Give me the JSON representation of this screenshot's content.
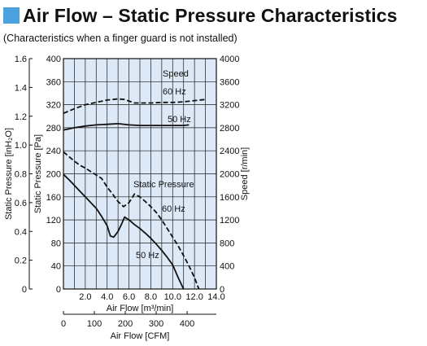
{
  "header": {
    "title": "Air Flow – Static Pressure Characteristics",
    "subtitle": "(Characteristics when a finger guard is not installed)"
  },
  "colors": {
    "title_marker": "#4aa3df",
    "plot_background": "#dde9f7",
    "grid": "#1a1a1a",
    "curves": "#111111"
  },
  "chart_data": {
    "type": "line",
    "grid": true,
    "plot_background": "#dde9f7",
    "axes": {
      "x_airflow_m3": {
        "label": "Air Flow [m³/min]",
        "range": [
          0,
          14
        ],
        "ticks": [
          2.0,
          4.0,
          6.0,
          8.0,
          10.0,
          12.0,
          14.0
        ],
        "tick_labels": [
          "2.0",
          "4.0",
          "6.0",
          "8.0",
          "10.0",
          "12.0",
          "14.0"
        ]
      },
      "x_airflow_cfm": {
        "label": "Air Flow [CFM]",
        "range": [
          0,
          494.4
        ],
        "ticks": [
          0,
          100,
          200,
          300,
          400
        ],
        "tick_labels": [
          "0",
          "100",
          "200",
          "300",
          "400"
        ]
      },
      "y_pressure_pa": {
        "label": "Static Pressure [Pa]",
        "range": [
          0,
          400
        ],
        "ticks": [
          0,
          40,
          80,
          120,
          160,
          200,
          240,
          280,
          320,
          360,
          400
        ],
        "tick_labels": [
          "0",
          "40",
          "80",
          "120",
          "160",
          "200",
          "240",
          "280",
          "320",
          "360",
          "400"
        ]
      },
      "y_pressure_inh2o": {
        "label": "Static Pressure [inH₂O]",
        "range": [
          0,
          1.6
        ],
        "ticks": [
          0,
          0.2,
          0.4,
          0.6,
          0.8,
          1.0,
          1.2,
          1.4,
          1.6
        ],
        "tick_labels": [
          "0",
          "0.2",
          "0.4",
          "0.6",
          "0.8",
          "1.0",
          "1.2",
          "1.4",
          "1.6"
        ]
      },
      "y_speed_rpm": {
        "label": "Speed [r/min]",
        "range": [
          0,
          4000
        ],
        "ticks": [
          0,
          400,
          800,
          1200,
          1600,
          2000,
          2400,
          2800,
          3200,
          3600,
          4000
        ],
        "tick_labels": [
          "0",
          "400",
          "800",
          "1200",
          "1600",
          "2000",
          "2400",
          "2800",
          "3200",
          "3600",
          "4000"
        ]
      }
    },
    "annotations": {
      "speed": "Speed",
      "speed_60hz": "60 Hz",
      "speed_50hz": "50 Hz",
      "static_pressure": "Static Pressure",
      "pressure_60hz": "60 Hz",
      "pressure_50hz": "50 Hz"
    },
    "series": [
      {
        "name": "60 Hz",
        "group": "Speed",
        "style": "dashed",
        "unit": "r/min",
        "x": [
          0,
          1,
          2,
          3,
          4,
          5,
          5.6,
          6.5,
          8,
          9,
          10,
          11,
          12,
          13
        ],
        "y": [
          3050,
          3130,
          3200,
          3240,
          3280,
          3300,
          3290,
          3230,
          3230,
          3240,
          3240,
          3250,
          3270,
          3290
        ]
      },
      {
        "name": "50 Hz",
        "group": "Speed",
        "style": "solid",
        "unit": "r/min",
        "x": [
          0,
          1,
          2,
          3,
          4,
          5,
          6,
          7,
          8,
          9,
          10,
          11,
          11.5
        ],
        "y": [
          2760,
          2800,
          2830,
          2850,
          2860,
          2870,
          2850,
          2840,
          2840,
          2840,
          2840,
          2840,
          2850
        ]
      },
      {
        "name": "60 Hz",
        "group": "Static Pressure",
        "style": "dashed",
        "unit": "Pa",
        "x": [
          0,
          0.5,
          1,
          1.5,
          2,
          2.5,
          3,
          3.5,
          4,
          4.5,
          5,
          5.5,
          6,
          6.5,
          7,
          7.5,
          8,
          8.5,
          9,
          9.5,
          10,
          10.5,
          11,
          11.5,
          12,
          12.4
        ],
        "y": [
          238,
          230,
          222,
          215,
          210,
          204,
          198,
          192,
          177,
          165,
          152,
          143,
          150,
          165,
          160,
          152,
          143,
          133,
          120,
          105,
          90,
          75,
          58,
          40,
          20,
          0
        ]
      },
      {
        "name": "50 Hz",
        "group": "Static Pressure",
        "style": "solid",
        "unit": "Pa",
        "x": [
          0,
          0.5,
          1,
          1.5,
          2,
          2.5,
          3,
          3.5,
          4,
          4.3,
          4.6,
          5,
          5.3,
          5.6,
          6,
          6.5,
          7,
          7.5,
          8,
          8.5,
          9,
          9.5,
          10,
          10.5,
          11
        ],
        "y": [
          199,
          190,
          180,
          170,
          160,
          150,
          140,
          126,
          110,
          92,
          90,
          100,
          112,
          125,
          120,
          112,
          105,
          97,
          88,
          78,
          67,
          55,
          42,
          20,
          0
        ]
      }
    ]
  }
}
